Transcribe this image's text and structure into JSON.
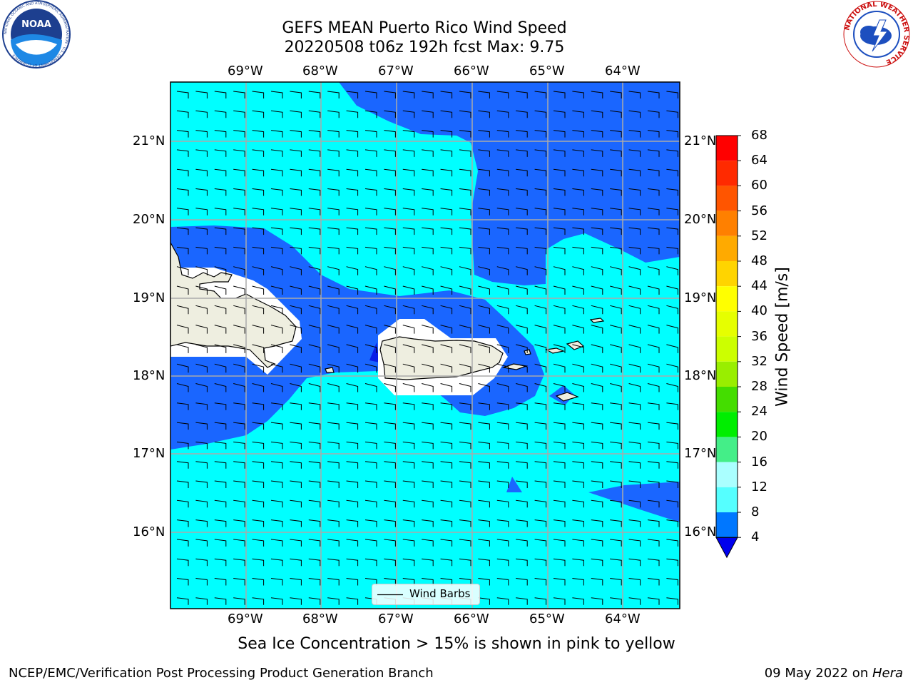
{
  "header": {
    "title_line1": "GEFS MEAN Puerto Rico Wind Speed",
    "title_line2": "20220508 t06z 192h fcst   Max: 9.75"
  },
  "logos": {
    "noaa_text": "NOAA",
    "noaa_ring_text": "NATIONAL OCEANIC AND ATMOSPHERIC ADMINISTRATION · U.S. DEPARTMENT OF COMMERCE",
    "nws_ring_text": "NATIONAL WEATHER SERVICE"
  },
  "map": {
    "lon_labels": [
      "69°W",
      "68°W",
      "67°W",
      "66°W",
      "65°W",
      "64°W"
    ],
    "lat_labels": [
      "21°N",
      "20°N",
      "19°N",
      "18°N",
      "17°N",
      "16°N"
    ],
    "legend_label": "Wind Barbs"
  },
  "colorbar": {
    "label": "Wind Speed [m/s]",
    "ticks": [
      "68",
      "64",
      "60",
      "56",
      "52",
      "48",
      "44",
      "40",
      "36",
      "32",
      "28",
      "24",
      "20",
      "16",
      "12",
      "8",
      "4"
    ],
    "colors": [
      "#ff0000",
      "#ff2a00",
      "#ff5500",
      "#ff8000",
      "#ffaa00",
      "#ffd400",
      "#ffff00",
      "#e6ff00",
      "#ccff00",
      "#99ee00",
      "#44dd00",
      "#00ee00",
      "#44ee88",
      "#aaffff",
      "#55ffff",
      "#00ffff",
      "#0077ff"
    ],
    "extend_color": "#0000ee"
  },
  "fields": {
    "bg_color": "#00ffff",
    "low_wind_color": "#1a66ff",
    "land_color": "#eeeee0",
    "grid_color": "#aaaaaa"
  },
  "footer": {
    "left": "NCEP/EMC/Verification Post Processing Product Generation Branch",
    "date": "09 May 2022 on ",
    "machine": "Hera",
    "note": "Sea Ice Concentration > 15% is shown in pink to yellow"
  }
}
